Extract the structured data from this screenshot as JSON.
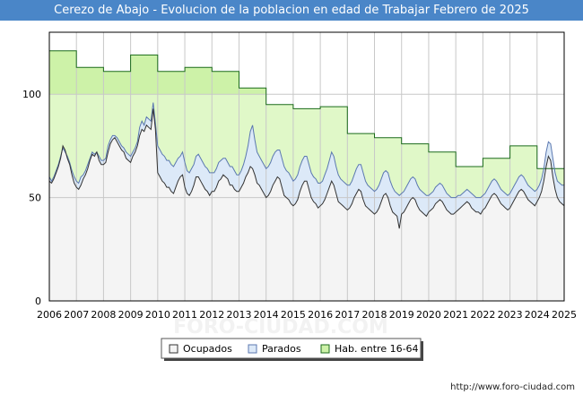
{
  "header": {
    "title": "Cerezo de Abajo - Evolucion de la poblacion en edad de Trabajar Febrero de 2025"
  },
  "footer": {
    "url": "http://www.foro-ciudad.com"
  },
  "watermark": {
    "text": "FORO-CIUDAD.COM"
  },
  "colors": {
    "title_bg": "#4a86c8",
    "hab_fill": "#e0f8c8",
    "hab_fill_upper": "#cdf2a8",
    "hab_line": "#1b6b1b",
    "parados_fill": "#dce9f8",
    "parados_line": "#5b78b0",
    "ocupados_fill": "#f4f4f4",
    "ocupados_line": "#333333",
    "grid": "#c8c8c8"
  },
  "chart_data": {
    "type": "area",
    "title": "Cerezo de Abajo - Evolucion de la poblacion en edad de Trabajar Febrero de 2025",
    "xlim": [
      2006,
      2025
    ],
    "ylim": [
      0,
      130
    ],
    "x_ticks": [
      "2006",
      "2007",
      "2008",
      "2009",
      "2010",
      "2011",
      "2012",
      "2013",
      "2014",
      "2015",
      "2016",
      "2017",
      "2018",
      "2019",
      "2020",
      "2021",
      "2022",
      "2023",
      "2024",
      "2025"
    ],
    "y_ticks": [
      0,
      50,
      100
    ],
    "grid": true,
    "legend": [
      "Ocupados",
      "Parados",
      "Hab. entre 16-64"
    ],
    "legend_position": "bottom-center",
    "series": [
      {
        "name": "Hab. entre 16-64",
        "step": true,
        "years": [
          2006,
          2007,
          2008,
          2009,
          2010,
          2011,
          2012,
          2013,
          2014,
          2015,
          2016,
          2017,
          2018,
          2019,
          2020,
          2021,
          2022,
          2023,
          2024,
          2025
        ],
        "values": [
          121,
          113,
          111,
          119,
          111,
          113,
          111,
          103,
          95,
          93,
          94,
          81,
          79,
          76,
          72,
          65,
          69,
          75,
          64,
          64
        ]
      },
      {
        "name": "Parados",
        "monthly_start": 2006,
        "values": [
          60,
          58,
          60,
          63,
          66,
          70,
          74,
          72,
          70,
          67,
          63,
          60,
          58,
          57,
          60,
          61,
          63,
          66,
          69,
          72,
          71,
          72,
          70,
          68,
          68,
          69,
          75,
          78,
          80,
          80,
          79,
          77,
          75,
          74,
          72,
          71,
          70,
          72,
          74,
          77,
          84,
          87,
          85,
          89,
          88,
          87,
          96,
          86,
          75,
          73,
          71,
          70,
          68,
          68,
          66,
          65,
          67,
          69,
          70,
          72,
          67,
          63,
          62,
          64,
          66,
          70,
          71,
          69,
          67,
          65,
          64,
          62,
          62,
          62,
          64,
          67,
          68,
          69,
          69,
          67,
          65,
          65,
          63,
          61,
          61,
          63,
          66,
          70,
          75,
          82,
          85,
          78,
          72,
          70,
          68,
          66,
          64,
          65,
          67,
          70,
          72,
          73,
          73,
          69,
          65,
          63,
          62,
          60,
          58,
          59,
          61,
          65,
          68,
          70,
          70,
          66,
          62,
          60,
          59,
          57,
          57,
          58,
          61,
          64,
          68,
          72,
          70,
          65,
          61,
          59,
          58,
          57,
          56,
          56,
          58,
          61,
          64,
          66,
          66,
          62,
          58,
          56,
          55,
          54,
          53,
          54,
          56,
          59,
          62,
          63,
          62,
          58,
          55,
          53,
          52,
          51,
          52,
          53,
          55,
          57,
          59,
          60,
          59,
          56,
          54,
          53,
          52,
          51,
          51,
          52,
          53,
          55,
          56,
          57,
          56,
          54,
          52,
          51,
          50,
          50,
          50,
          51,
          51,
          52,
          53,
          54,
          53,
          52,
          51,
          50,
          50,
          50,
          51,
          52,
          54,
          56,
          58,
          59,
          58,
          56,
          54,
          53,
          52,
          51,
          52,
          54,
          56,
          58,
          60,
          61,
          60,
          58,
          56,
          55,
          54,
          53,
          54,
          56,
          59,
          64,
          72,
          77,
          76,
          69,
          62,
          58,
          57,
          56,
          56
        ]
      },
      {
        "name": "Ocupados",
        "monthly_start": 2006,
        "values": [
          58,
          57,
          59,
          62,
          65,
          69,
          75,
          73,
          69,
          66,
          61,
          57,
          55,
          54,
          56,
          59,
          61,
          64,
          68,
          71,
          70,
          72,
          68,
          66,
          66,
          67,
          72,
          76,
          78,
          79,
          77,
          75,
          73,
          72,
          69,
          68,
          67,
          70,
          72,
          75,
          80,
          83,
          82,
          85,
          84,
          83,
          93,
          83,
          62,
          60,
          58,
          57,
          55,
          55,
          53,
          52,
          55,
          58,
          60,
          61,
          55,
          52,
          51,
          53,
          56,
          60,
          60,
          58,
          56,
          54,
          53,
          51,
          53,
          53,
          55,
          58,
          59,
          61,
          60,
          59,
          56,
          56,
          54,
          53,
          53,
          55,
          57,
          60,
          62,
          65,
          64,
          61,
          57,
          56,
          54,
          52,
          50,
          51,
          53,
          56,
          58,
          60,
          59,
          55,
          51,
          50,
          49,
          47,
          46,
          47,
          49,
          53,
          56,
          58,
          58,
          54,
          50,
          48,
          47,
          45,
          46,
          47,
          49,
          52,
          55,
          58,
          56,
          52,
          48,
          47,
          46,
          45,
          44,
          45,
          47,
          50,
          52,
          54,
          53,
          49,
          46,
          45,
          44,
          43,
          42,
          43,
          45,
          48,
          51,
          52,
          50,
          46,
          43,
          42,
          41,
          35,
          42,
          43,
          45,
          47,
          49,
          50,
          49,
          46,
          44,
          43,
          42,
          41,
          43,
          44,
          45,
          47,
          48,
          49,
          48,
          46,
          44,
          43,
          42,
          42,
          43,
          44,
          45,
          46,
          47,
          48,
          47,
          45,
          44,
          43,
          43,
          42,
          44,
          45,
          47,
          49,
          51,
          52,
          51,
          49,
          47,
          46,
          45,
          44,
          45,
          47,
          49,
          51,
          53,
          54,
          53,
          51,
          49,
          48,
          47,
          46,
          48,
          50,
          53,
          58,
          65,
          70,
          68,
          60,
          54,
          50,
          48,
          47,
          46
        ]
      }
    ]
  }
}
